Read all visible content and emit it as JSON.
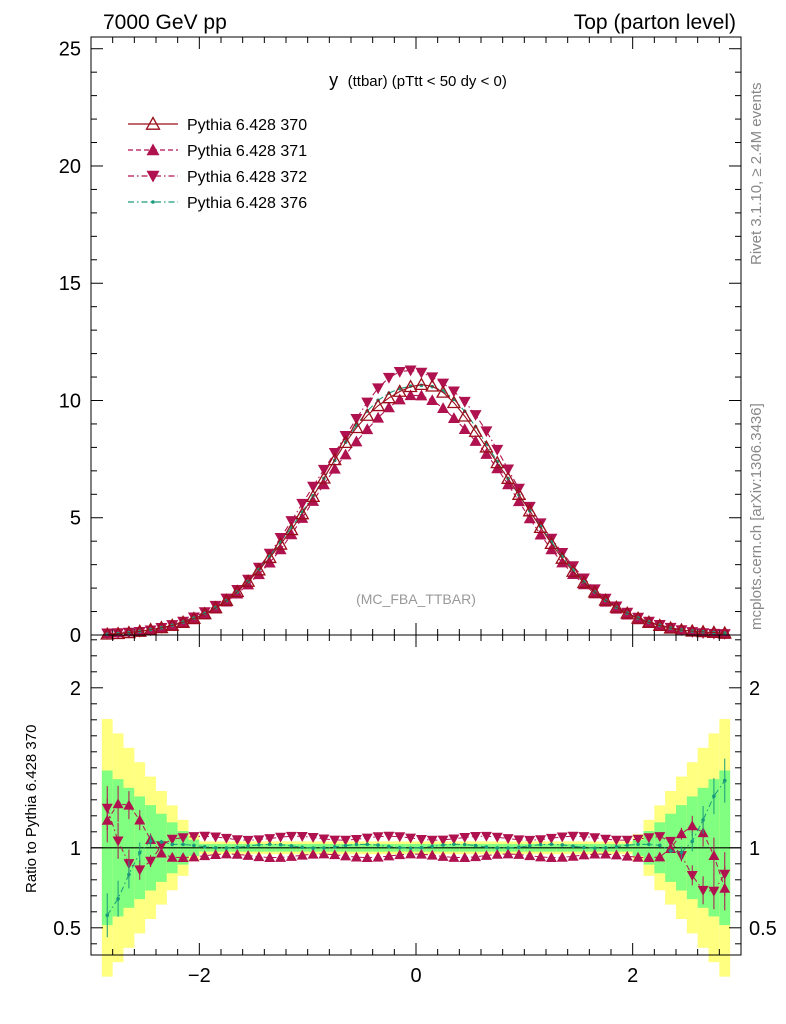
{
  "header": {
    "left": "7000 GeV pp",
    "right": "Top (parton level)"
  },
  "side_labels": {
    "rivet": "Rivet 3.1.10, ≥ 2.4M events",
    "mcplots": "mcplots.cern.ch [arXiv:1306.3436]"
  },
  "chart_data": {
    "type": "line",
    "title": "y (ttbar) (pTtt < 50 dy < 0)",
    "title_main": "y",
    "title_sub": "(ttbar) (pTtt < 50 dy < 0)",
    "watermark": "(MC_FBA_TTBAR)",
    "xlim": [
      -3.0,
      3.0
    ],
    "ylim": [
      0,
      25.5
    ],
    "ratio_ylim": [
      0.33,
      2.33
    ],
    "ratio_ylabel": "Ratio to Pythia 6.428 370",
    "x_ticks": [
      -2,
      0,
      2
    ],
    "x_tick_labels": [
      "−2",
      "0",
      "2"
    ],
    "y_ticks": [
      0,
      5,
      10,
      15,
      20,
      25
    ],
    "y_tick_labels": [
      "0",
      "5",
      "10",
      "15",
      "20",
      "25"
    ],
    "ratio_ticks": [
      0.5,
      1,
      2
    ],
    "ratio_tick_labels": [
      "0.5",
      "1",
      "2"
    ],
    "legend_position": "top-left",
    "bins": {
      "start": -2.9,
      "width": 0.1,
      "count": 58
    },
    "shape": {
      "peak": 10.65,
      "sigma": 0.88
    },
    "series": [
      {
        "name": "Pythia 6.428 370",
        "color": "#9b0d1a",
        "style": "solid",
        "marker": "open-triangle-up",
        "scale": 1.0
      },
      {
        "name": "Pythia 6.428 371",
        "color": "#b0124f",
        "style": "dashed",
        "marker": "filled-triangle-up",
        "scale": 0.95
      },
      {
        "name": "Pythia 6.428 372",
        "color": "#b0124f",
        "style": "dashdot",
        "marker": "filled-triangle-down",
        "scale": 1.06
      },
      {
        "name": "Pythia 6.428 376",
        "color": "#1a9a7a",
        "style": "dashdot",
        "marker": "dot",
        "scale": 1.01
      }
    ],
    "band_colors": {
      "outer": "#ffff80",
      "inner": "#80ff80"
    }
  }
}
